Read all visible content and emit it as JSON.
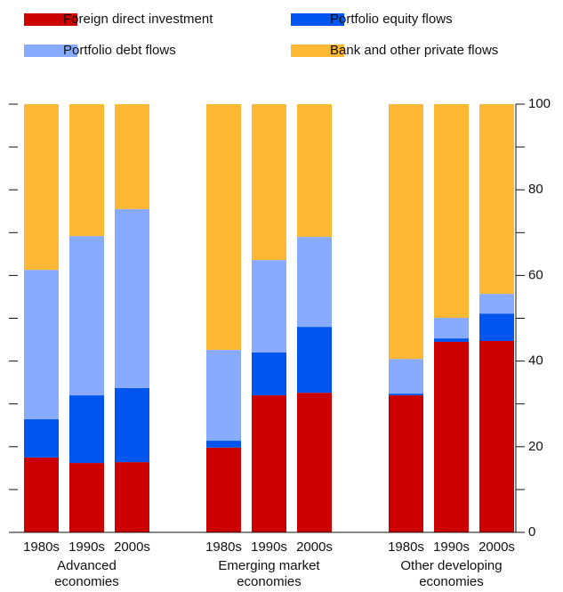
{
  "chart_data": {
    "type": "stacked_bar",
    "categories": [
      "1980s",
      "1990s",
      "2000s",
      "1980s",
      "1990s",
      "2000s",
      "1980s",
      "1990s",
      "2000s"
    ],
    "groups": [
      "Advanced economies",
      "Emerging market economies",
      "Other developing economies"
    ],
    "series": [
      {
        "name": "Foreign direct investment",
        "color": "#cc0000",
        "values": [
          17.5,
          16.2,
          16.4,
          19.8,
          32.0,
          32.6,
          32.0,
          44.5,
          44.7
        ]
      },
      {
        "name": "Portfolio equity flows",
        "color": "#0055ee",
        "values": [
          8.9,
          15.8,
          17.3,
          1.6,
          10.0,
          15.4,
          0.4,
          0.8,
          6.4
        ]
      },
      {
        "name": "Portfolio debt flows",
        "color": "#88aaff",
        "values": [
          34.9,
          37.2,
          41.8,
          21.2,
          21.6,
          21.0,
          8.1,
          4.8,
          4.6
        ]
      },
      {
        "name": "Bank and other private flows",
        "color": "#ffb833",
        "values": [
          38.7,
          30.8,
          24.5,
          57.4,
          36.4,
          31.0,
          59.5,
          49.9,
          44.3
        ]
      }
    ],
    "ylim": [
      0,
      100
    ],
    "yticks": [
      0,
      20,
      40,
      60,
      80,
      100
    ],
    "minor_yticks": [
      10,
      30,
      50,
      70,
      90
    ]
  }
}
